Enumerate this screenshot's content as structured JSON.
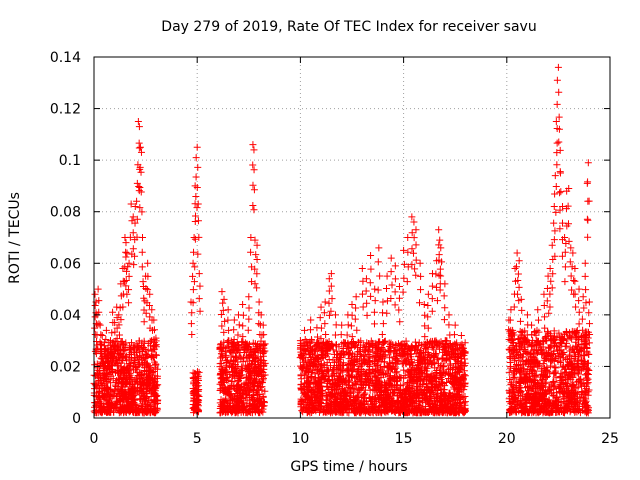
{
  "chart_data": {
    "type": "scatter",
    "title": "Day 279 of 2019, Rate Of TEC Index for receiver savu",
    "xlabel": "GPS time / hours",
    "ylabel": "ROTI / TECUs",
    "xlim": [
      0,
      25
    ],
    "ylim": [
      0,
      0.14
    ],
    "x_ticks": [
      0,
      5,
      10,
      15,
      20,
      25
    ],
    "x_tick_labels": [
      "0",
      "5",
      "10",
      "15",
      "20",
      "25"
    ],
    "y_ticks": [
      0,
      0.02,
      0.04,
      0.06,
      0.08,
      0.1,
      0.12,
      0.14
    ],
    "y_tick_labels": [
      "0",
      "0.02",
      "0.04",
      "0.06",
      "0.08",
      "0.1",
      "0.12",
      "0.14"
    ],
    "grid": true,
    "marker": "plus",
    "color": "#ff0000",
    "series": [
      {
        "name": "ROTI",
        "points": [
          [
            0.05,
            0.048
          ],
          [
            0.1,
            0.045
          ],
          [
            0.15,
            0.04
          ],
          [
            0.2,
            0.05
          ],
          [
            0.3,
            0.036
          ],
          [
            0.4,
            0.032
          ],
          [
            0.5,
            0.028
          ],
          [
            0.6,
            0.034
          ],
          [
            0.7,
            0.026
          ],
          [
            0.8,
            0.03
          ],
          [
            0.9,
            0.041
          ],
          [
            1.0,
            0.037
          ],
          [
            1.1,
            0.043
          ],
          [
            1.2,
            0.04
          ],
          [
            1.3,
            0.052
          ],
          [
            1.4,
            0.058
          ],
          [
            1.5,
            0.07
          ],
          [
            1.55,
            0.068
          ],
          [
            1.6,
            0.064
          ],
          [
            1.7,
            0.06
          ],
          [
            1.8,
            0.083
          ],
          [
            1.9,
            0.078
          ],
          [
            2.0,
            0.082
          ],
          [
            2.1,
            0.091
          ],
          [
            2.15,
            0.115
          ],
          [
            2.2,
            0.113
          ],
          [
            2.25,
            0.105
          ],
          [
            2.3,
            0.103
          ],
          [
            2.35,
            0.07
          ],
          [
            2.4,
            0.051
          ],
          [
            2.5,
            0.055
          ],
          [
            2.6,
            0.06
          ],
          [
            2.7,
            0.048
          ],
          [
            2.8,
            0.042
          ],
          [
            2.9,
            0.038
          ],
          [
            3.0,
            0.031
          ],
          [
            4.7,
            0.045
          ],
          [
            4.8,
            0.06
          ],
          [
            4.85,
            0.07
          ],
          [
            4.9,
            0.09
          ],
          [
            4.95,
            0.101
          ],
          [
            5.0,
            0.105
          ],
          [
            5.05,
            0.083
          ],
          [
            5.1,
            0.056
          ],
          [
            6.2,
            0.049
          ],
          [
            6.3,
            0.046
          ],
          [
            6.5,
            0.042
          ],
          [
            6.8,
            0.038
          ],
          [
            7.0,
            0.04
          ],
          [
            7.2,
            0.044
          ],
          [
            7.5,
            0.047
          ],
          [
            7.6,
            0.07
          ],
          [
            7.7,
            0.106
          ],
          [
            7.75,
            0.104
          ],
          [
            7.8,
            0.069
          ],
          [
            7.9,
            0.067
          ],
          [
            8.0,
            0.045
          ],
          [
            8.1,
            0.04
          ],
          [
            8.2,
            0.036
          ],
          [
            10.0,
            0.03
          ],
          [
            10.2,
            0.034
          ],
          [
            10.5,
            0.038
          ],
          [
            10.8,
            0.035
          ],
          [
            11.0,
            0.043
          ],
          [
            11.2,
            0.045
          ],
          [
            11.4,
            0.054
          ],
          [
            11.5,
            0.056
          ],
          [
            11.7,
            0.04
          ],
          [
            12.0,
            0.036
          ],
          [
            12.3,
            0.04
          ],
          [
            12.5,
            0.044
          ],
          [
            12.7,
            0.047
          ],
          [
            13.0,
            0.058
          ],
          [
            13.2,
            0.054
          ],
          [
            13.4,
            0.063
          ],
          [
            13.6,
            0.05
          ],
          [
            13.8,
            0.066
          ],
          [
            14.0,
            0.045
          ],
          [
            14.2,
            0.055
          ],
          [
            14.4,
            0.062
          ],
          [
            14.6,
            0.059
          ],
          [
            14.8,
            0.051
          ],
          [
            15.0,
            0.065
          ],
          [
            15.2,
            0.07
          ],
          [
            15.4,
            0.078
          ],
          [
            15.5,
            0.076
          ],
          [
            15.6,
            0.073
          ],
          [
            15.8,
            0.06
          ],
          [
            16.0,
            0.044
          ],
          [
            16.2,
            0.048
          ],
          [
            16.4,
            0.056
          ],
          [
            16.6,
            0.061
          ],
          [
            16.7,
            0.073
          ],
          [
            16.75,
            0.069
          ],
          [
            16.8,
            0.066
          ],
          [
            17.0,
            0.052
          ],
          [
            17.2,
            0.04
          ],
          [
            17.5,
            0.036
          ],
          [
            17.8,
            0.032
          ],
          [
            20.1,
            0.038
          ],
          [
            20.2,
            0.042
          ],
          [
            20.4,
            0.058
          ],
          [
            20.5,
            0.064
          ],
          [
            20.6,
            0.061
          ],
          [
            20.7,
            0.046
          ],
          [
            21.0,
            0.04
          ],
          [
            21.2,
            0.036
          ],
          [
            21.5,
            0.042
          ],
          [
            21.8,
            0.048
          ],
          [
            22.0,
            0.055
          ],
          [
            22.1,
            0.058
          ],
          [
            22.2,
            0.067
          ],
          [
            22.3,
            0.082
          ],
          [
            22.35,
            0.094
          ],
          [
            22.4,
            0.115
          ],
          [
            22.45,
            0.131
          ],
          [
            22.5,
            0.136
          ],
          [
            22.55,
            0.112
          ],
          [
            22.6,
            0.095
          ],
          [
            22.7,
            0.082
          ],
          [
            22.8,
            0.07
          ],
          [
            22.9,
            0.088
          ],
          [
            23.0,
            0.089
          ],
          [
            23.1,
            0.066
          ],
          [
            23.2,
            0.064
          ],
          [
            23.3,
            0.058
          ],
          [
            23.5,
            0.05
          ],
          [
            23.7,
            0.047
          ],
          [
            23.8,
            0.06
          ],
          [
            23.9,
            0.091
          ],
          [
            23.95,
            0.099
          ],
          [
            24.0,
            0.045
          ]
        ]
      }
    ],
    "dense_bands": [
      {
        "x_start": 0.0,
        "x_end": 3.1,
        "y_max": 0.03
      },
      {
        "x_start": 4.8,
        "x_end": 5.1,
        "y_max": 0.018
      },
      {
        "x_start": 6.1,
        "x_end": 8.3,
        "y_max": 0.03
      },
      {
        "x_start": 10.0,
        "x_end": 18.0,
        "y_max": 0.03
      },
      {
        "x_start": 20.1,
        "x_end": 24.0,
        "y_max": 0.034
      }
    ]
  }
}
